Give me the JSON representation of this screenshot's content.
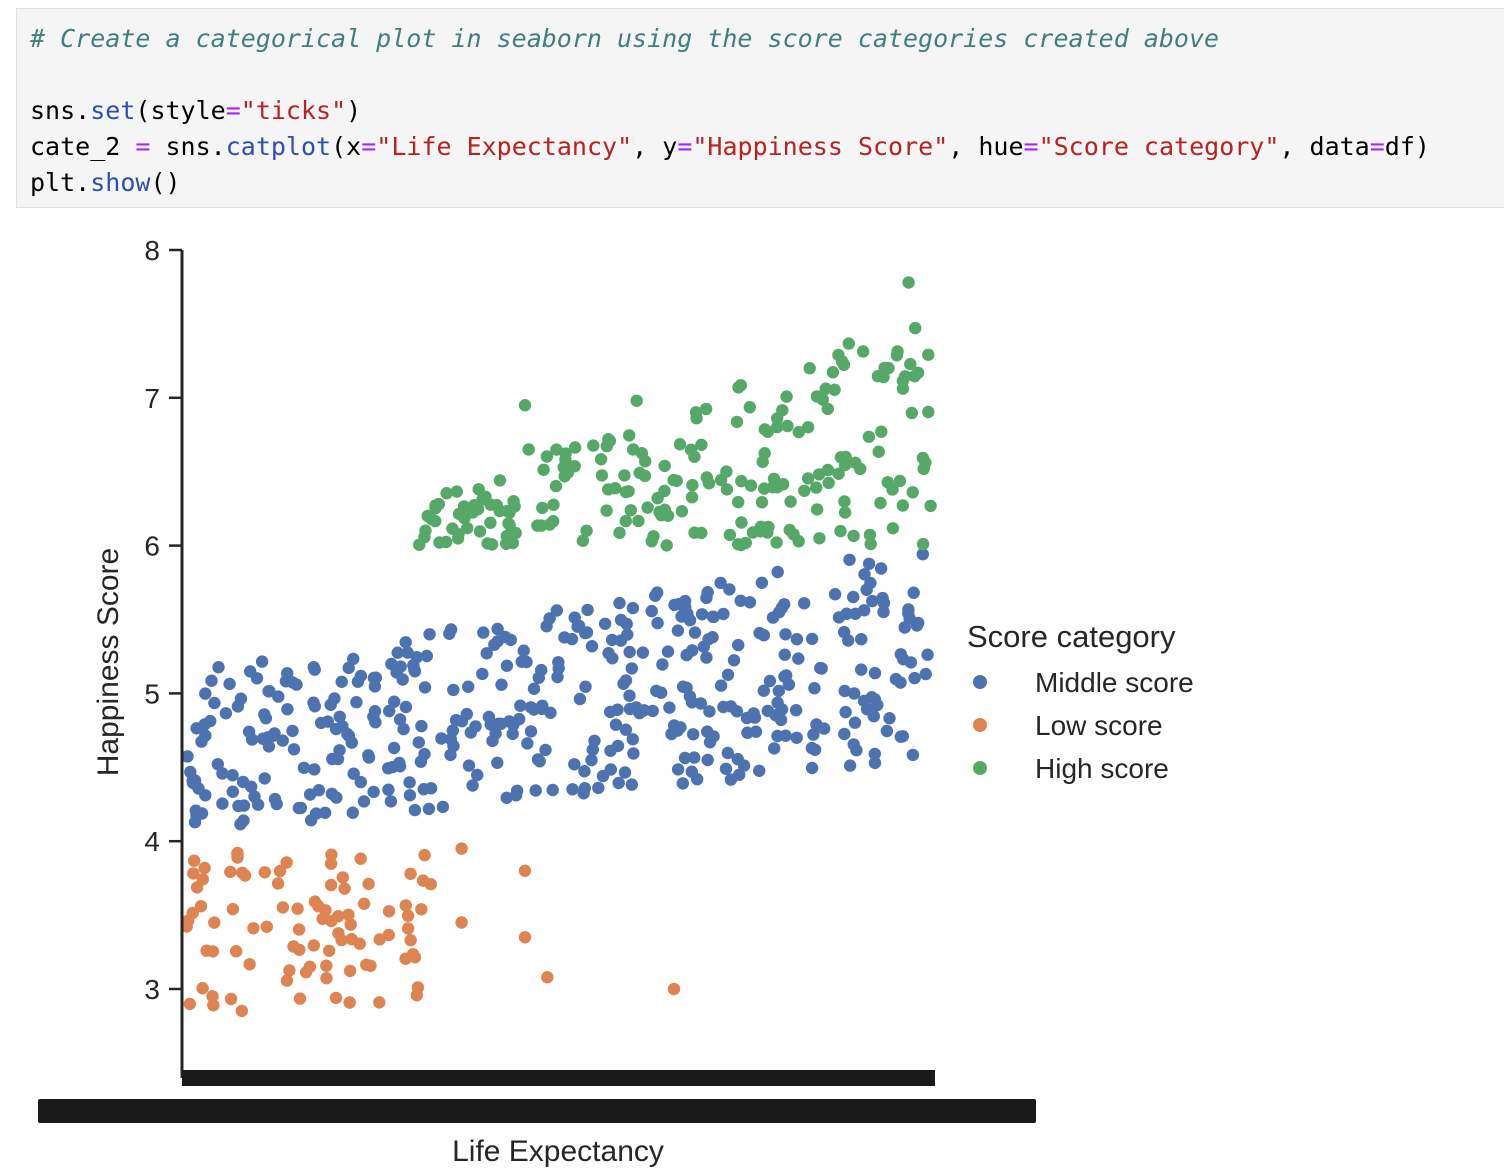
{
  "code": {
    "comment": "# Create a categorical plot in seaborn using the score categories created above",
    "line1": {
      "obj": "sns",
      "func": "set",
      "arg_name": "style",
      "arg_value": "\"ticks\""
    },
    "line2": {
      "var": "cate_2",
      "obj": "sns",
      "func": "catplot",
      "args": [
        {
          "name": "x",
          "value": "\"Life Expectancy\""
        },
        {
          "name": "y",
          "value": "\"Happiness Score\""
        },
        {
          "name": "hue",
          "value": "\"Score category\""
        },
        {
          "name": "data",
          "value": "df"
        }
      ]
    },
    "line3": {
      "obj": "plt",
      "func": "show"
    }
  },
  "chart_data": {
    "type": "scatter",
    "title": "",
    "xlabel": "Life Expectancy",
    "ylabel": "Happiness Score",
    "ylim": [
      2.35,
      8.0
    ],
    "yticks": [
      3,
      4,
      5,
      6,
      7,
      8
    ],
    "x_tick_labels": "overlapping categorical tick labels (illegible)",
    "legend": {
      "title": "Score category",
      "placement": "center-right-outside",
      "entries": [
        {
          "name": "Middle score",
          "color": "#4c72b0"
        },
        {
          "name": "Low score",
          "color": "#dd8452"
        },
        {
          "name": "High score",
          "color": "#55a868"
        }
      ]
    },
    "series": [
      {
        "name": "Middle score",
        "color": "#4c72b0",
        "band": {
          "x_from": 0.0,
          "x_to": 1.0,
          "y_low_start": 4.05,
          "y_low_end": 4.55,
          "y_high_start": 5.15,
          "y_high_end": 6.0,
          "count": 440
        }
      },
      {
        "name": "Low score",
        "color": "#dd8452",
        "band": {
          "x_from": 0.0,
          "x_to": 0.33,
          "y_low": 2.85,
          "y_high": 3.95,
          "count": 90
        },
        "outliers": [
          {
            "x": 0.455,
            "y": 3.8
          },
          {
            "x": 0.455,
            "y": 3.35
          },
          {
            "x": 0.485,
            "y": 3.08
          },
          {
            "x": 0.655,
            "y": 3.0
          },
          {
            "x": 0.37,
            "y": 3.45
          },
          {
            "x": 0.37,
            "y": 3.95
          }
        ]
      },
      {
        "name": "High score",
        "color": "#55a868",
        "band": {
          "x_from": 0.31,
          "x_to": 1.0,
          "y_low": 6.0,
          "y_high_start": 6.3,
          "y_high_end": 7.6,
          "count": 220
        },
        "outliers": [
          {
            "x": 0.455,
            "y": 6.95
          },
          {
            "x": 0.46,
            "y": 6.65
          },
          {
            "x": 0.605,
            "y": 6.98
          },
          {
            "x": 0.97,
            "y": 7.78
          }
        ]
      }
    ]
  }
}
